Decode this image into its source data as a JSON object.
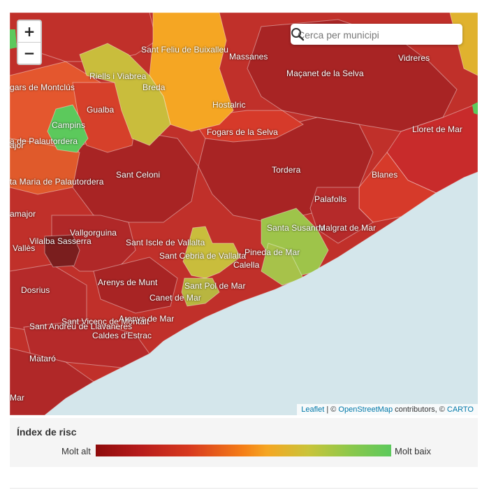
{
  "map": {
    "zoom_in": "+",
    "zoom_out": "−",
    "search": {
      "placeholder": "Cerca per municipi"
    },
    "attribution": {
      "leaflet": "Leaflet",
      "sep1": " | © ",
      "osm": "OpenStreetMap",
      "mid": " contributors, © ",
      "carto": "CARTO"
    },
    "labels": [
      "Sant Feliu de Buixalleu",
      "Massanes",
      "Vidreres",
      "Riells i Viabrea",
      "Maçanet de la Selva",
      "gars de Montclús",
      "Breda",
      "Gualba",
      "Hostalric",
      "Campins",
      "Lloret de Mar",
      "Fogars de la Selva",
      "a de Palautordera",
      "ajor",
      "Sant Celoni",
      "Tordera",
      "Blanes",
      "ta Maria de Palautordera",
      "Palafolls",
      "amajor",
      "Santa Susanna",
      "Malgrat de Mar",
      "Vallgorguina",
      "Vallès",
      "Vilalba Sasserra",
      "Sant Iscle de Vallalta",
      "Pineda de Mar",
      "Sant Cebrià de Vallalta",
      "Calella",
      "Arenys de Munt",
      "Dosrius",
      "Sant Pol de Mar",
      "Canet de Mar",
      "Arenys de Mar",
      "Sant Vicenç de Montalt",
      "Sant Andreu de Llavaneres",
      "Caldes d'Estrac",
      "Mataró",
      "Mar"
    ]
  },
  "legend": {
    "title": "Índex de risc",
    "high_label": "Molt alt",
    "low_label": "Molt baix",
    "scale_colors": [
      "#8e0b0b",
      "#d83a1f",
      "#f5a623",
      "#c9c43a",
      "#5cc95c"
    ]
  }
}
